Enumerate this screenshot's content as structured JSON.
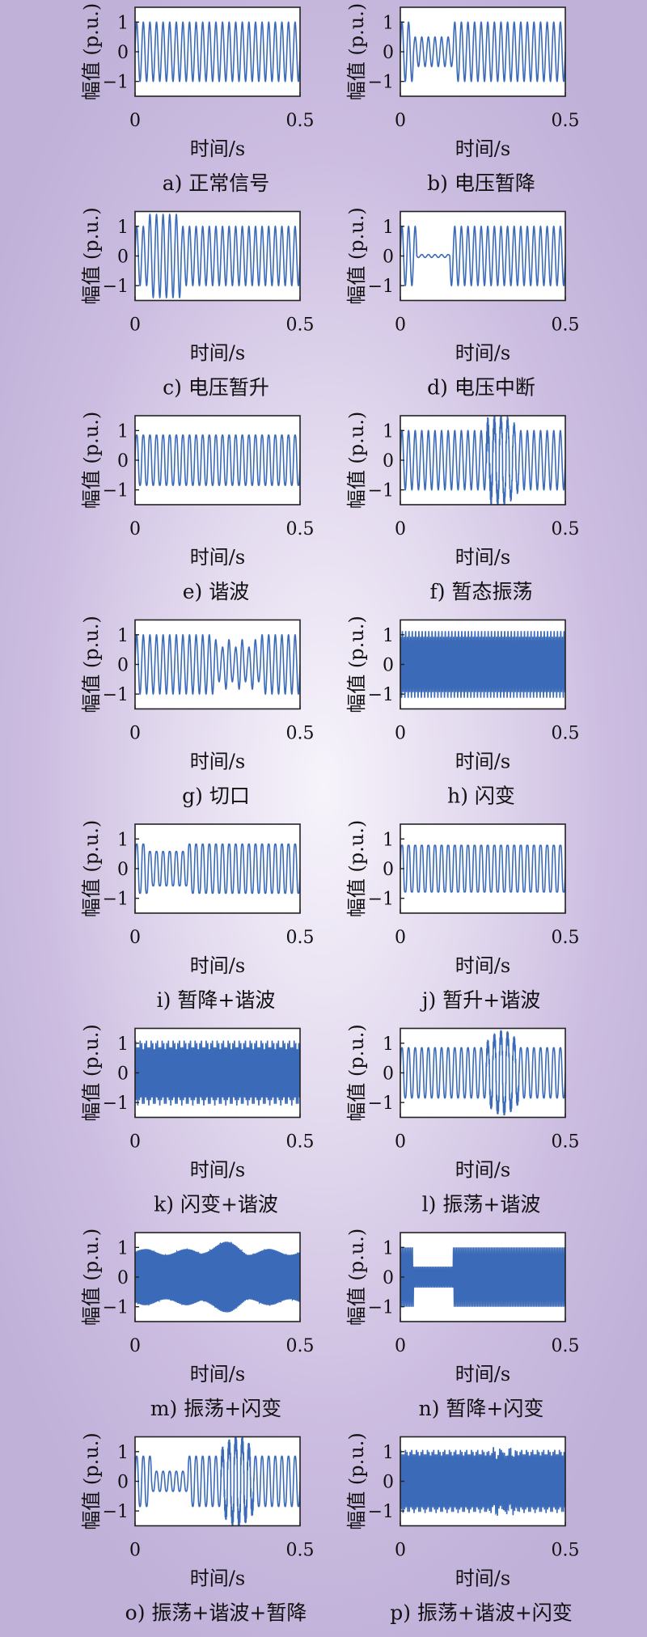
{
  "chart_data": [
    {
      "id": "a",
      "caption": "a) 正常信号",
      "xlabel": "时间/s",
      "ylabel": "幅值 (p.u.)",
      "xlim": [
        0,
        0.5
      ],
      "ylim": [
        -1.5,
        1.5
      ],
      "xticks": [
        "0",
        "0.5"
      ],
      "yticks": [
        "1",
        "0",
        "−1"
      ],
      "type": "line",
      "frequency_hz": 50,
      "series": [
        {
          "signal": "sine",
          "amplitude": 1.0
        }
      ]
    },
    {
      "id": "b",
      "caption": "b) 电压暂降",
      "xlabel": "时间/s",
      "ylabel": "幅值 (p.u.)",
      "xlim": [
        0,
        0.5
      ],
      "ylim": [
        -1.5,
        1.5
      ],
      "xticks": [
        "0",
        "0.5"
      ],
      "yticks": [
        "1",
        "0",
        "−1"
      ],
      "type": "line",
      "frequency_hz": 50,
      "series": [
        {
          "signal": "sag",
          "amplitude": 1.0,
          "event_amplitude": 0.5,
          "event_start_s": 0.04,
          "event_end_s": 0.16
        }
      ]
    },
    {
      "id": "c",
      "caption": "c) 电压暂升",
      "xlabel": "时间/s",
      "ylabel": "幅值 (p.u.)",
      "xlim": [
        0,
        0.5
      ],
      "ylim": [
        -1.5,
        1.5
      ],
      "xticks": [
        "0",
        "0.5"
      ],
      "yticks": [
        "1",
        "0",
        "−1"
      ],
      "type": "line",
      "frequency_hz": 50,
      "series": [
        {
          "signal": "swell",
          "amplitude": 1.0,
          "event_amplitude": 1.4,
          "event_start_s": 0.04,
          "event_end_s": 0.14
        }
      ]
    },
    {
      "id": "d",
      "caption": "d) 电压中断",
      "xlabel": "时间/s",
      "ylabel": "幅值 (p.u.)",
      "xlim": [
        0,
        0.5
      ],
      "ylim": [
        -1.5,
        1.5
      ],
      "xticks": [
        "0",
        "0.5"
      ],
      "yticks": [
        "1",
        "0",
        "−1"
      ],
      "type": "line",
      "frequency_hz": 50,
      "series": [
        {
          "signal": "interruption",
          "amplitude": 1.0,
          "event_amplitude": 0.05,
          "event_start_s": 0.05,
          "event_end_s": 0.15
        }
      ]
    },
    {
      "id": "e",
      "caption": "e) 谐波",
      "xlabel": "时间/s",
      "ylabel": "幅值 (p.u.)",
      "xlim": [
        0,
        0.5
      ],
      "ylim": [
        -1.5,
        1.5
      ],
      "xticks": [
        "0",
        "0.5"
      ],
      "yticks": [
        "1",
        "0",
        "−1"
      ],
      "type": "line",
      "frequency_hz": 50,
      "series": [
        {
          "signal": "harmonic",
          "amplitude": 1.0
        }
      ]
    },
    {
      "id": "f",
      "caption": "f) 暂态振荡",
      "xlabel": "时间/s",
      "ylabel": "幅值 (p.u.)",
      "xlim": [
        0,
        0.5
      ],
      "ylim": [
        -1.5,
        1.5
      ],
      "xticks": [
        "0",
        "0.5"
      ],
      "yticks": [
        "1",
        "0",
        "−1"
      ],
      "type": "line",
      "frequency_hz": 50,
      "series": [
        {
          "signal": "oscillation",
          "amplitude": 1.0,
          "event_start_s": 0.26,
          "event_end_s": 0.36
        }
      ]
    },
    {
      "id": "g",
      "caption": "g) 切口",
      "xlabel": "时间/s",
      "ylabel": "幅值 (p.u.)",
      "xlim": [
        0,
        0.5
      ],
      "ylim": [
        -1.5,
        1.5
      ],
      "xticks": [
        "0",
        "0.5"
      ],
      "yticks": [
        "1",
        "0",
        "−1"
      ],
      "type": "line",
      "frequency_hz": 50,
      "series": [
        {
          "signal": "notch",
          "amplitude": 1.0,
          "event_start_s": 0.24,
          "event_end_s": 0.38
        }
      ]
    },
    {
      "id": "h",
      "caption": "h) 闪变",
      "xlabel": "时间/s",
      "ylabel": "幅值 (p.u.)",
      "xlim": [
        0,
        0.5
      ],
      "ylim": [
        -1.5,
        1.5
      ],
      "xticks": [
        "0",
        "0.5"
      ],
      "yticks": [
        "1",
        "0",
        "−1"
      ],
      "type": "line",
      "frequency_hz": 50,
      "series": [
        {
          "signal": "flicker",
          "amplitude": 1.0
        }
      ]
    },
    {
      "id": "i",
      "caption": "i) 暂降+谐波",
      "xlabel": "时间/s",
      "ylabel": "幅值 (p.u.)",
      "xlim": [
        0,
        0.5
      ],
      "ylim": [
        -1.5,
        1.5
      ],
      "xticks": [
        "0",
        "0.5"
      ],
      "yticks": [
        "1",
        "0",
        "−1"
      ],
      "type": "line",
      "frequency_hz": 50,
      "series": [
        {
          "signal": "sag+harmonic",
          "amplitude": 1.0,
          "event_amplitude": 0.7,
          "event_start_s": 0.04,
          "event_end_s": 0.16
        }
      ]
    },
    {
      "id": "j",
      "caption": "j) 暂升+谐波",
      "xlabel": "时间/s",
      "ylabel": "幅值 (p.u.)",
      "xlim": [
        0,
        0.5
      ],
      "ylim": [
        -1.5,
        1.5
      ],
      "xticks": [
        "0",
        "0.5"
      ],
      "yticks": [
        "1",
        "0",
        "−1"
      ],
      "type": "line",
      "frequency_hz": 50,
      "series": [
        {
          "signal": "swell+harmonic",
          "amplitude": 1.0,
          "event_amplitude": 1.0
        }
      ]
    },
    {
      "id": "k",
      "caption": "k) 闪变+谐波",
      "xlabel": "时间/s",
      "ylabel": "幅值 (p.u.)",
      "xlim": [
        0,
        0.5
      ],
      "ylim": [
        -1.5,
        1.5
      ],
      "xticks": [
        "0",
        "0.5"
      ],
      "yticks": [
        "1",
        "0",
        "−1"
      ],
      "type": "line",
      "frequency_hz": 50,
      "series": [
        {
          "signal": "flicker+harmonic",
          "amplitude": 1.0
        }
      ]
    },
    {
      "id": "l",
      "caption": "l) 振荡+谐波",
      "xlabel": "时间/s",
      "ylabel": "幅值 (p.u.)",
      "xlim": [
        0,
        0.5
      ],
      "ylim": [
        -1.5,
        1.5
      ],
      "xticks": [
        "0",
        "0.5"
      ],
      "yticks": [
        "1",
        "0",
        "−1"
      ],
      "type": "line",
      "frequency_hz": 50,
      "series": [
        {
          "signal": "oscillation+harmonic",
          "amplitude": 1.0,
          "event_start_s": 0.26,
          "event_end_s": 0.36
        }
      ]
    },
    {
      "id": "m",
      "caption": "m) 振荡+闪变",
      "xlabel": "时间/s",
      "ylabel": "幅值 (p.u.)",
      "xlim": [
        0,
        0.5
      ],
      "ylim": [
        -1.5,
        1.5
      ],
      "xticks": [
        "0",
        "0.5"
      ],
      "yticks": [
        "1",
        "0",
        "−1"
      ],
      "type": "line",
      "frequency_hz": 50,
      "series": [
        {
          "signal": "oscillation+flicker",
          "amplitude": 1.0,
          "event_start_s": 0.2,
          "event_end_s": 0.34
        }
      ]
    },
    {
      "id": "n",
      "caption": "n) 暂降+闪变",
      "xlabel": "时间/s",
      "ylabel": "幅值 (p.u.)",
      "xlim": [
        0,
        0.5
      ],
      "ylim": [
        -1.5,
        1.5
      ],
      "xticks": [
        "0",
        "0.5"
      ],
      "yticks": [
        "1",
        "0",
        "−1"
      ],
      "type": "line",
      "frequency_hz": 50,
      "series": [
        {
          "signal": "sag+flicker",
          "amplitude": 1.0,
          "event_amplitude": 0.35,
          "event_start_s": 0.04,
          "event_end_s": 0.16
        }
      ]
    },
    {
      "id": "o",
      "caption": "o) 振荡+谐波+暂降",
      "xlabel": "时间/s",
      "ylabel": "幅值 (p.u.)",
      "xlim": [
        0,
        0.5
      ],
      "ylim": [
        -1.5,
        1.5
      ],
      "xticks": [
        "0",
        "0.5"
      ],
      "yticks": [
        "1",
        "0",
        "−1"
      ],
      "type": "line",
      "frequency_hz": 50,
      "series": [
        {
          "signal": "oscillation+harmonic+sag",
          "amplitude": 1.0,
          "event_amplitude": 0.4,
          "event_start_s": 0.05,
          "event_end_s": 0.16,
          "osc_start_s": 0.26,
          "osc_end_s": 0.36
        }
      ]
    },
    {
      "id": "p",
      "caption": "p) 振荡+谐波+闪变",
      "xlabel": "时间/s",
      "ylabel": "幅值 (p.u.)",
      "xlim": [
        0,
        0.5
      ],
      "ylim": [
        -1.5,
        1.5
      ],
      "xticks": [
        "0",
        "0.5"
      ],
      "yticks": [
        "1",
        "0",
        "−1"
      ],
      "type": "line",
      "frequency_hz": 50,
      "series": [
        {
          "signal": "oscillation+harmonic+flicker",
          "amplitude": 1.0,
          "event_start_s": 0.26,
          "event_end_s": 0.36
        }
      ]
    }
  ],
  "colors": {
    "line": "#3a6ab8",
    "frame": "#222222",
    "axes_bg": "#ffffff"
  }
}
